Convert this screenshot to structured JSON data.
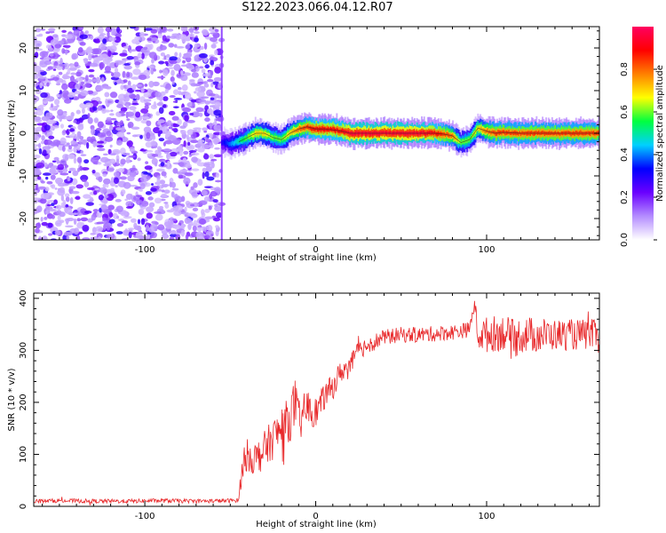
{
  "title": "S122.2023.066.04.12.R07",
  "chart_data": [
    {
      "type": "heatmap",
      "xlabel": "Height of straight line (km)",
      "ylabel": "Frequency (Hz)",
      "xlim": [
        -165,
        166
      ],
      "ylim": [
        -25,
        25
      ],
      "xticks": [
        -100,
        0,
        100
      ],
      "yticks": [
        -20,
        -10,
        0,
        10,
        20
      ],
      "noise_region_x": [
        -165,
        -55
      ],
      "noise_level": 0.15,
      "ridge": {
        "x": [
          -55,
          -50,
          -45,
          -40,
          -35,
          -30,
          -25,
          -20,
          -15,
          -10,
          -5,
          0,
          5,
          10,
          15,
          20,
          30,
          40,
          50,
          60,
          70,
          75,
          80,
          85,
          90,
          95,
          100,
          105,
          110,
          120,
          130,
          140,
          150,
          160,
          166
        ],
        "freq": [
          -2,
          -2.5,
          -2,
          -1,
          0,
          0,
          -1,
          -1.5,
          0,
          1,
          1.5,
          1,
          1,
          0.8,
          0.5,
          0,
          0,
          0,
          0,
          0,
          0,
          -0.2,
          -0.6,
          -2.2,
          -1.5,
          1.2,
          0.5,
          0,
          0.2,
          0,
          0,
          0,
          0,
          0,
          0
        ],
        "amplitude": [
          0.3,
          0.4,
          0.5,
          0.6,
          0.7,
          0.7,
          0.6,
          0.6,
          0.7,
          0.8,
          0.85,
          0.9,
          0.9,
          0.9,
          0.9,
          0.95,
          0.95,
          0.95,
          0.95,
          0.95,
          0.9,
          0.85,
          0.8,
          0.6,
          0.6,
          0.7,
          0.8,
          0.85,
          0.85,
          0.85,
          0.85,
          0.85,
          0.85,
          0.85,
          0.85
        ]
      },
      "colorbar": {
        "label": "Normalized spectral amplitude",
        "ticks": [
          0.0,
          0.2,
          0.4,
          0.6,
          0.8
        ],
        "tick_labels": [
          "0.0",
          "0.2",
          "0.4",
          "0.6",
          "0.8"
        ],
        "range": [
          0,
          1
        ],
        "colors": [
          "#ffffff",
          "#b48cff",
          "#6a00ff",
          "#0000ff",
          "#00d0ff",
          "#00ff40",
          "#ffff00",
          "#ff8000",
          "#ff0000",
          "#ff0060"
        ]
      }
    },
    {
      "type": "line",
      "xlabel": "Height of straight line (km)",
      "ylabel": "SNR (10 * v/v)",
      "xlim": [
        -165,
        166
      ],
      "ylim": [
        0,
        410
      ],
      "xticks": [
        -100,
        0,
        100
      ],
      "yticks": [
        0,
        100,
        200,
        300,
        400
      ],
      "series": [
        {
          "color": "#e8282a",
          "x": [
            -165,
            -150,
            -130,
            -110,
            -90,
            -70,
            -50,
            -45,
            -44,
            -42,
            -40,
            -35,
            -30,
            -25,
            -20,
            -15,
            -12,
            -10,
            -5,
            0,
            5,
            10,
            15,
            20,
            25,
            30,
            40,
            50,
            60,
            70,
            80,
            90,
            93,
            95,
            100,
            110,
            115,
            120,
            130,
            140,
            150,
            160,
            166
          ],
          "y": [
            10,
            11,
            10,
            10,
            11,
            10,
            11,
            12,
            50,
            90,
            100,
            90,
            110,
            130,
            150,
            170,
            200,
            160,
            190,
            180,
            210,
            230,
            260,
            270,
            300,
            310,
            325,
            330,
            330,
            332,
            335,
            340,
            390,
            330,
            330,
            335,
            320,
            330,
            330,
            330,
            330,
            330,
            330
          ],
          "noise": [
            4,
            4,
            4,
            4,
            4,
            4,
            4,
            4,
            20,
            30,
            30,
            35,
            35,
            40,
            40,
            45,
            50,
            45,
            35,
            30,
            25,
            25,
            22,
            20,
            18,
            18,
            15,
            15,
            15,
            15,
            15,
            15,
            10,
            30,
            35,
            35,
            40,
            35,
            35,
            30,
            30,
            30,
            30
          ]
        }
      ]
    }
  ]
}
